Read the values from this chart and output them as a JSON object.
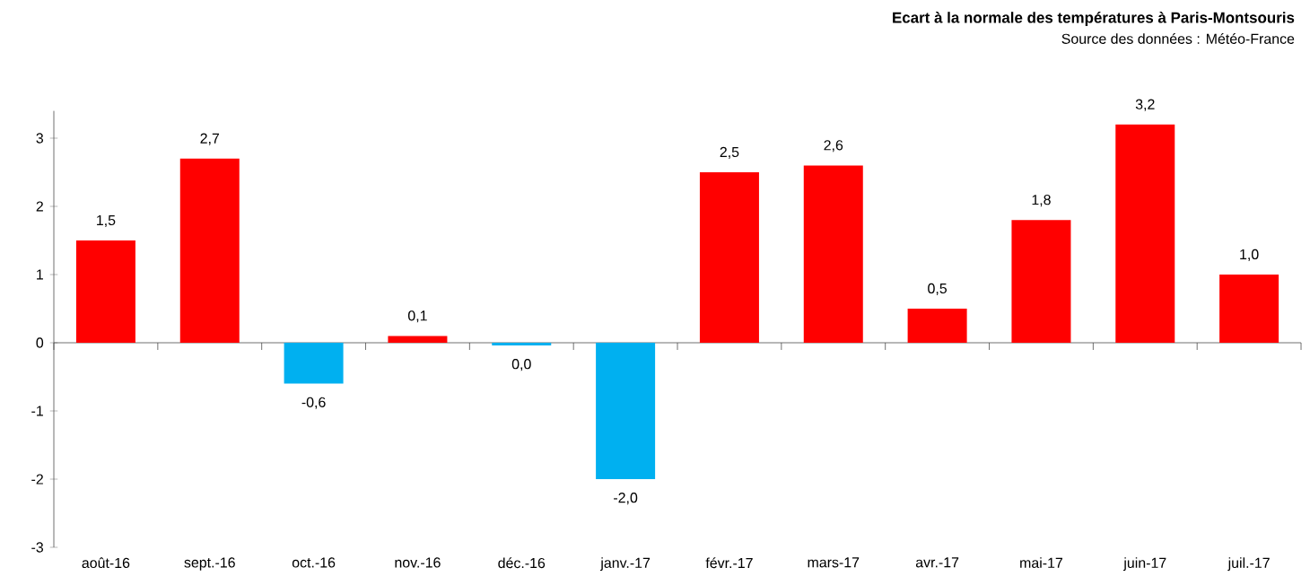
{
  "chart_data": {
    "type": "bar",
    "title": "Ecart à la normale des températures à Paris-Montsouris",
    "annotations": [
      "Source des données : Météo-France"
    ],
    "categories": [
      "août-16",
      "sept.-16",
      "oct.-16",
      "nov.-16",
      "déc.-16",
      "janv.-17",
      "févr.-17",
      "mars-17",
      "avr.-17",
      "mai-17",
      "juin-17",
      "juil.-17"
    ],
    "values": [
      1.5,
      2.7,
      -0.6,
      0.1,
      -0.04,
      -2.0,
      2.5,
      2.6,
      0.5,
      1.8,
      3.2,
      1.0
    ],
    "value_labels": [
      "1,5",
      "2,7",
      "-0,6",
      "0,1",
      "0,0",
      "-2,0",
      "2,5",
      "2,6",
      "0,5",
      "1,8",
      "3,2",
      "1,0"
    ],
    "colors": [
      "#ff0000",
      "#ff0000",
      "#00b0f0",
      "#ff0000",
      "#00b0f0",
      "#00b0f0",
      "#ff0000",
      "#ff0000",
      "#ff0000",
      "#ff0000",
      "#ff0000",
      "#ff0000"
    ],
    "ylim": [
      -3,
      3.4
    ],
    "yticks": [
      -3,
      -2,
      -1,
      0,
      1,
      2,
      3
    ]
  }
}
